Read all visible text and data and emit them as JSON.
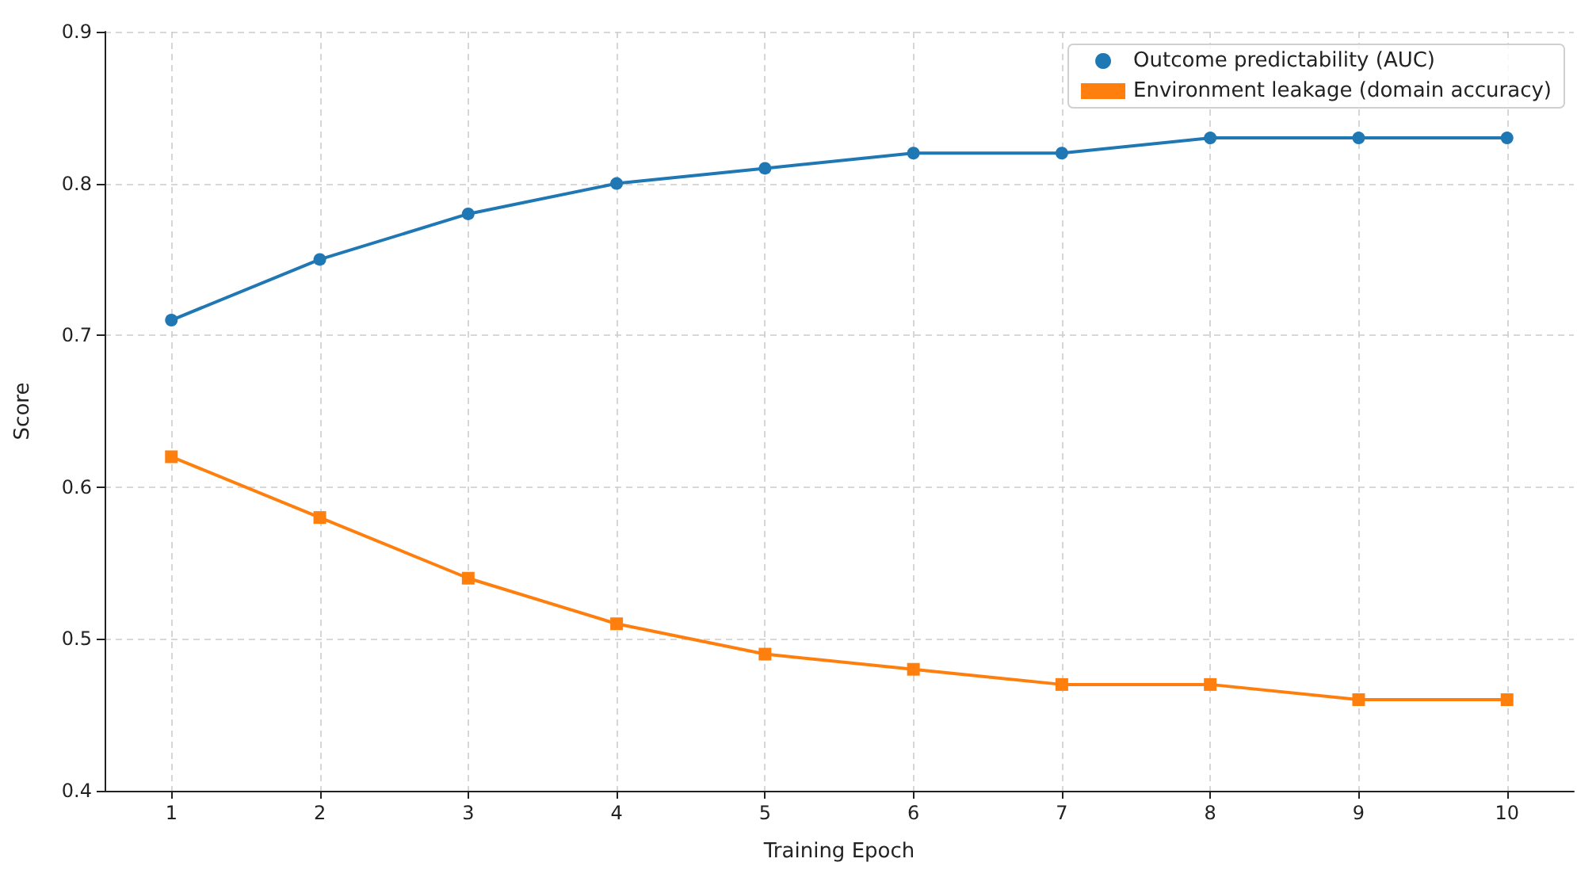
{
  "chart_data": {
    "type": "line",
    "xlabel": "Training Epoch",
    "ylabel": "Score",
    "x": [
      1,
      2,
      3,
      4,
      5,
      6,
      7,
      8,
      9,
      10
    ],
    "series": [
      {
        "name": "Outcome predictability (AUC)",
        "color": "#1f77b4",
        "marker": "circle",
        "values": [
          0.71,
          0.75,
          0.78,
          0.8,
          0.81,
          0.82,
          0.82,
          0.83,
          0.83,
          0.83
        ]
      },
      {
        "name": "Environment leakage (domain accuracy)",
        "color": "#ff7f0e",
        "marker": "square",
        "values": [
          0.62,
          0.58,
          0.54,
          0.51,
          0.49,
          0.48,
          0.47,
          0.47,
          0.46,
          0.46
        ]
      }
    ],
    "xlim": [
      0.55,
      10.45
    ],
    "xticks": [
      1,
      2,
      3,
      4,
      5,
      6,
      7,
      8,
      9,
      10
    ],
    "ylim": [
      0.4,
      0.9
    ],
    "yticks": [
      0.4,
      0.5,
      0.6,
      0.7,
      0.8,
      0.9
    ],
    "grid": true,
    "legend": "top right",
    "line_style": "solid"
  }
}
